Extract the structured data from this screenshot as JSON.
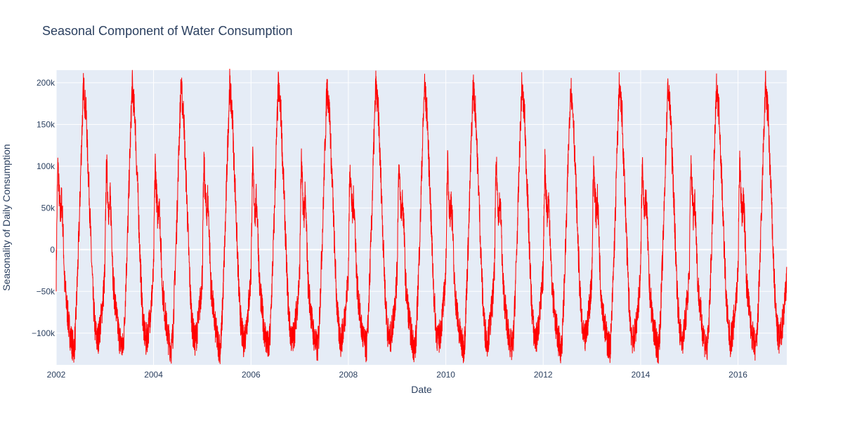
{
  "chart_data": {
    "type": "line",
    "title": "Seasonal Component of Water Consumption",
    "xlabel": "Date",
    "ylabel": "Seasonality of Daily Consumption",
    "xlim": [
      "2002-01-01",
      "2017-01-01"
    ],
    "ylim": [
      -138000,
      215000
    ],
    "x_ticks": [
      {
        "value": "2002-01-01",
        "label": "2002"
      },
      {
        "value": "2004-01-01",
        "label": "2004"
      },
      {
        "value": "2006-01-01",
        "label": "2006"
      },
      {
        "value": "2008-01-01",
        "label": "2008"
      },
      {
        "value": "2010-01-01",
        "label": "2010"
      },
      {
        "value": "2012-01-01",
        "label": "2012"
      },
      {
        "value": "2014-01-01",
        "label": "2014"
      },
      {
        "value": "2016-01-01",
        "label": "2016"
      }
    ],
    "y_ticks": [
      {
        "value": -100000,
        "label": "−100k"
      },
      {
        "value": -50000,
        "label": "−50k"
      },
      {
        "value": 0,
        "label": "0"
      },
      {
        "value": 50000,
        "label": "50k"
      },
      {
        "value": 100000,
        "label": "100k"
      },
      {
        "value": 150000,
        "label": "150k"
      },
      {
        "value": 200000,
        "label": "200k"
      }
    ],
    "grid": true,
    "series": [
      {
        "color": "#ff0000",
        "repeats_yearly": true,
        "period_years": [
          2002,
          2016
        ],
        "annual_pattern": [
          {
            "x": "01-01",
            "y": -30000
          },
          {
            "x": "01-08",
            "y": 60000
          },
          {
            "x": "01-14",
            "y": 105000
          },
          {
            "x": "01-22",
            "y": 70000
          },
          {
            "x": "02-01",
            "y": 40000
          },
          {
            "x": "02-10",
            "y": 62000
          },
          {
            "x": "02-20",
            "y": 30000
          },
          {
            "x": "03-05",
            "y": -40000
          },
          {
            "x": "03-20",
            "y": -65000
          },
          {
            "x": "04-05",
            "y": -90000
          },
          {
            "x": "04-20",
            "y": -105000
          },
          {
            "x": "05-05",
            "y": -115000
          },
          {
            "x": "05-15",
            "y": -118000
          },
          {
            "x": "05-25",
            "y": -100000
          },
          {
            "x": "06-10",
            "y": -30000
          },
          {
            "x": "06-25",
            "y": 40000
          },
          {
            "x": "07-05",
            "y": 100000
          },
          {
            "x": "07-15",
            "y": 150000
          },
          {
            "x": "07-25",
            "y": 198000
          },
          {
            "x": "08-05",
            "y": 175000
          },
          {
            "x": "08-15",
            "y": 160000
          },
          {
            "x": "08-25",
            "y": 110000
          },
          {
            "x": "09-05",
            "y": 70000
          },
          {
            "x": "09-20",
            "y": 0
          },
          {
            "x": "10-05",
            "y": -60000
          },
          {
            "x": "10-20",
            "y": -95000
          },
          {
            "x": "11-05",
            "y": -110000
          },
          {
            "x": "11-20",
            "y": -100000
          },
          {
            "x": "12-05",
            "y": -80000
          },
          {
            "x": "12-20",
            "y": -55000
          },
          {
            "x": "12-31",
            "y": -30000
          }
        ]
      }
    ]
  }
}
